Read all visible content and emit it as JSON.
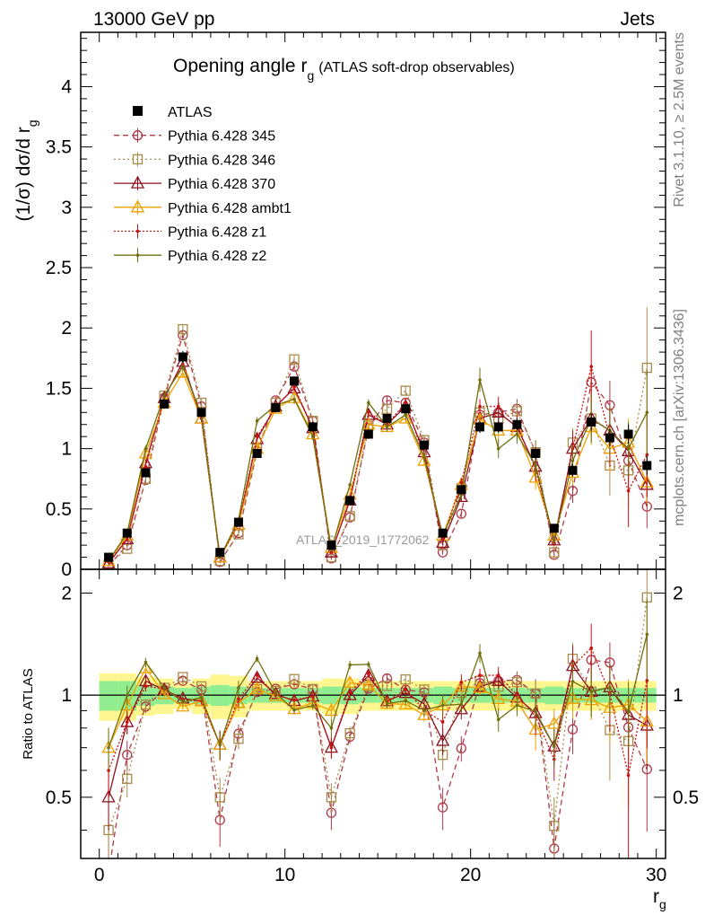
{
  "header": {
    "left": "13000 GeV pp",
    "right": "Jets"
  },
  "side_labels": {
    "rivet": "Rivet 3.1.10, ≥ 2.5M events",
    "mcplots": "mcplots.cern.ch [arXiv:1306.3436]"
  },
  "watermark": "ATLAS_2019_I1772062",
  "chart_data": {
    "type": "line",
    "title": "Opening angle r",
    "title_sub": "g",
    "title_suffix": "(ATLAS soft-drop observables)",
    "ylabel": "(1/σ) dσ/d r",
    "ylabel_sub": "g",
    "xlabel": "r",
    "xlabel_sub": "g",
    "xlim": [
      -1,
      30.5
    ],
    "ylim": [
      0,
      4.45
    ],
    "ratio_ylim": [
      0.33,
      2.35
    ],
    "ratio_ylabel": "Ratio to ATLAS",
    "x_ticks": [
      0,
      10,
      20,
      30
    ],
    "x_tick_labels": [
      "0",
      "10",
      "20",
      "30"
    ],
    "y_ticks": [
      0,
      0.5,
      1,
      1.5,
      2,
      2.5,
      3,
      3.5,
      4
    ],
    "y_tick_labels": [
      "0",
      "0.5",
      "1",
      "1.5",
      "2",
      "2.5",
      "3",
      "3.5",
      "4"
    ],
    "ratio_ticks": [
      0.5,
      1,
      2
    ],
    "ratio_tick_labels": [
      "0.5",
      "1",
      "2"
    ],
    "x": [
      0.5,
      1.5,
      2.5,
      3.5,
      4.5,
      5.5,
      6.5,
      7.5,
      8.5,
      9.5,
      10.5,
      11.5,
      12.5,
      13.5,
      14.5,
      15.5,
      16.5,
      17.5,
      18.5,
      19.5,
      20.5,
      21.5,
      22.5,
      23.5,
      24.5,
      25.5,
      26.5,
      27.5,
      28.5,
      29.5
    ],
    "data": {
      "name": "ATLAS",
      "values": [
        0.1,
        0.3,
        0.8,
        1.37,
        1.76,
        1.3,
        0.14,
        0.39,
        0.96,
        1.34,
        1.56,
        1.18,
        0.2,
        0.57,
        1.12,
        1.25,
        1.33,
        1.03,
        0.3,
        0.66,
        1.18,
        1.18,
        1.2,
        0.96,
        0.34,
        0.82,
        1.22,
        1.09,
        1.12,
        0.86
      ],
      "err": [
        0.01,
        0.02,
        0.03,
        0.04,
        0.05,
        0.04,
        0.01,
        0.02,
        0.03,
        0.04,
        0.04,
        0.04,
        0.01,
        0.02,
        0.04,
        0.04,
        0.04,
        0.03,
        0.02,
        0.03,
        0.05,
        0.05,
        0.05,
        0.05,
        0.03,
        0.05,
        0.07,
        0.07,
        0.08,
        0.08
      ],
      "band_inner": [
        0.1,
        0.1,
        0.07,
        0.06,
        0.05,
        0.06,
        0.07,
        0.06,
        0.05,
        0.05,
        0.05,
        0.05,
        0.06,
        0.06,
        0.05,
        0.05,
        0.05,
        0.05,
        0.06,
        0.05,
        0.05,
        0.05,
        0.05,
        0.05,
        0.06,
        0.05,
        0.05,
        0.05,
        0.05,
        0.05
      ],
      "band_outer": [
        0.16,
        0.16,
        0.13,
        0.12,
        0.09,
        0.12,
        0.15,
        0.14,
        0.1,
        0.1,
        0.1,
        0.1,
        0.12,
        0.12,
        0.1,
        0.1,
        0.1,
        0.1,
        0.1,
        0.1,
        0.1,
        0.1,
        0.1,
        0.1,
        0.1,
        0.1,
        0.1,
        0.1,
        0.1,
        0.1
      ]
    },
    "series": [
      {
        "name": "Pythia 6.428 345",
        "color": "#b03a48",
        "dash": "6,4",
        "marker": "circle",
        "values": [
          0.03,
          0.2,
          0.74,
          1.42,
          1.94,
          1.35,
          0.06,
          0.3,
          0.98,
          1.4,
          1.68,
          1.23,
          0.09,
          0.43,
          1.17,
          1.4,
          1.38,
          1.05,
          0.14,
          0.46,
          1.28,
          1.3,
          1.33,
          0.97,
          0.12,
          0.65,
          1.55,
          1.36,
          0.9,
          0.52
        ],
        "err": [
          0.01,
          0.02,
          0.03,
          0.03,
          0.04,
          0.03,
          0.01,
          0.02,
          0.03,
          0.03,
          0.04,
          0.03,
          0.01,
          0.02,
          0.03,
          0.04,
          0.04,
          0.04,
          0.02,
          0.04,
          0.06,
          0.08,
          0.08,
          0.1,
          0.03,
          0.1,
          0.15,
          0.2,
          0.2,
          0.18
        ]
      },
      {
        "name": "Pythia 6.428 346",
        "color": "#a88a4a",
        "dash": "2,3",
        "marker": "square",
        "values": [
          0.04,
          0.17,
          0.75,
          1.44,
          1.99,
          1.38,
          0.07,
          0.29,
          1.0,
          1.38,
          1.74,
          1.23,
          0.1,
          0.44,
          1.19,
          1.33,
          1.48,
          1.07,
          0.2,
          0.67,
          1.3,
          1.25,
          1.31,
          0.97,
          0.14,
          1.05,
          1.25,
          0.86,
          0.82,
          1.67
        ],
        "err": [
          0.01,
          0.02,
          0.03,
          0.03,
          0.04,
          0.03,
          0.01,
          0.02,
          0.03,
          0.03,
          0.04,
          0.03,
          0.01,
          0.02,
          0.03,
          0.04,
          0.04,
          0.04,
          0.02,
          0.04,
          0.06,
          0.08,
          0.08,
          0.1,
          0.03,
          0.12,
          0.2,
          0.25,
          0.3,
          0.5
        ]
      },
      {
        "name": "Pythia 6.428 370",
        "color": "#8b1020",
        "dash": "",
        "marker": "triangle",
        "values": [
          0.05,
          0.25,
          0.88,
          1.42,
          1.72,
          1.25,
          0.1,
          0.37,
          1.08,
          1.35,
          1.5,
          1.17,
          0.14,
          0.57,
          1.28,
          1.2,
          1.35,
          0.97,
          0.22,
          0.6,
          1.25,
          1.3,
          1.18,
          0.85,
          0.24,
          1.0,
          1.25,
          1.15,
          0.98,
          0.7
        ],
        "err": [
          0.01,
          0.02,
          0.03,
          0.03,
          0.04,
          0.03,
          0.01,
          0.02,
          0.03,
          0.03,
          0.04,
          0.03,
          0.01,
          0.02,
          0.03,
          0.04,
          0.04,
          0.04,
          0.02,
          0.04,
          0.06,
          0.08,
          0.08,
          0.1,
          0.03,
          0.1,
          0.15,
          0.2,
          0.2,
          0.18
        ]
      },
      {
        "name": "Pythia 6.428 ambt1",
        "color": "#f0a000",
        "dash": "",
        "marker": "triangle",
        "values": [
          0.07,
          0.28,
          0.96,
          1.38,
          1.63,
          1.25,
          0.1,
          0.37,
          1.0,
          1.33,
          1.42,
          1.12,
          0.18,
          0.62,
          1.2,
          1.18,
          1.25,
          0.9,
          0.28,
          0.7,
          1.24,
          1.15,
          1.15,
          0.76,
          0.28,
          0.8,
          1.18,
          1.0,
          1.05,
          0.72
        ],
        "err": [
          0.01,
          0.02,
          0.03,
          0.03,
          0.04,
          0.03,
          0.01,
          0.02,
          0.03,
          0.03,
          0.04,
          0.03,
          0.01,
          0.02,
          0.03,
          0.04,
          0.04,
          0.04,
          0.02,
          0.04,
          0.06,
          0.08,
          0.08,
          0.1,
          0.03,
          0.1,
          0.15,
          0.2,
          0.2,
          0.18
        ]
      },
      {
        "name": "Pythia 6.428 z1",
        "color": "#cc1010",
        "dash": "2,2",
        "marker": "dot",
        "values": [
          0.06,
          0.25,
          0.85,
          1.43,
          1.7,
          1.25,
          0.1,
          0.38,
          1.1,
          1.34,
          1.51,
          1.17,
          0.14,
          0.58,
          1.3,
          1.2,
          1.38,
          0.93,
          0.25,
          0.72,
          1.35,
          1.35,
          1.2,
          0.83,
          0.22,
          1.0,
          1.68,
          1.1,
          0.65,
          0.95
        ],
        "err": [
          0.01,
          0.02,
          0.03,
          0.03,
          0.04,
          0.03,
          0.01,
          0.02,
          0.03,
          0.03,
          0.04,
          0.03,
          0.01,
          0.02,
          0.03,
          0.04,
          0.04,
          0.04,
          0.02,
          0.04,
          0.06,
          0.08,
          0.08,
          0.1,
          0.03,
          0.15,
          0.3,
          0.25,
          0.3,
          0.35
        ]
      },
      {
        "name": "Pythia 6.428 z2",
        "color": "#707010",
        "dash": "",
        "marker": "dot",
        "values": [
          0.07,
          0.3,
          1.0,
          1.44,
          1.68,
          1.28,
          0.1,
          0.41,
          1.23,
          1.36,
          1.41,
          1.1,
          0.16,
          0.7,
          1.38,
          1.18,
          1.28,
          0.93,
          0.28,
          0.62,
          1.57,
          1.0,
          1.12,
          0.86,
          0.24,
          0.9,
          1.25,
          1.15,
          1.0,
          1.3
        ],
        "err": [
          0.01,
          0.02,
          0.03,
          0.03,
          0.04,
          0.03,
          0.01,
          0.02,
          0.03,
          0.03,
          0.04,
          0.03,
          0.01,
          0.02,
          0.03,
          0.04,
          0.04,
          0.04,
          0.02,
          0.04,
          0.1,
          0.08,
          0.08,
          0.1,
          0.03,
          0.12,
          0.2,
          0.2,
          0.22,
          0.35
        ]
      }
    ]
  }
}
